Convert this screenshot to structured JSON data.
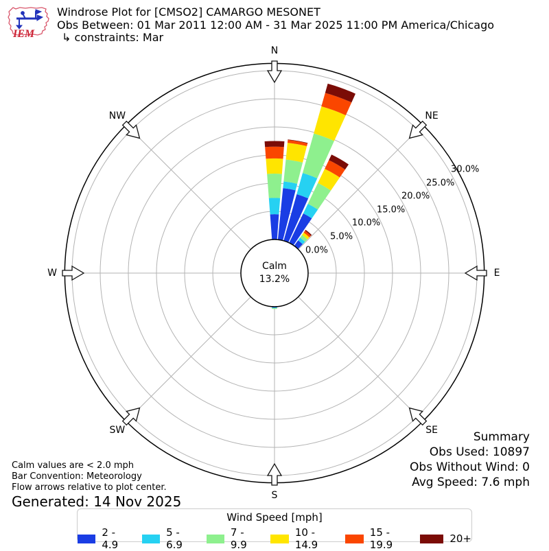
{
  "header": {
    "logo_text": "IEM",
    "title": "Windrose Plot for [CMSO2] CAMARGO MESONET",
    "subtitle": "Obs Between: 01 Mar 2011 12:00 AM - 31 Mar 2025 11:00 PM America/Chicago",
    "constraints": "↳ constraints: Mar"
  },
  "chart_data": {
    "type": "windrose-polar-stacked-bar",
    "units": "percent frequency of wind direction",
    "calm": {
      "label": "Calm",
      "value_label": "13.2%",
      "value_pct": 13.2
    },
    "radial_ticks": [
      0,
      5,
      10,
      15,
      20,
      25,
      30
    ],
    "radial_tick_labels": [
      "0.0%",
      "5.0%",
      "10.0%",
      "15.0%",
      "20.0%",
      "25.0%",
      "30.0%"
    ],
    "radial_max_pct": 31.3,
    "ring_label_azimuth_deg": 61.5,
    "bar_width_deg": 8.6,
    "grid_on": true,
    "compass_points": [
      {
        "label": "N",
        "az": 0
      },
      {
        "label": "NE",
        "az": 45
      },
      {
        "label": "E",
        "az": 90
      },
      {
        "label": "SE",
        "az": 135
      },
      {
        "label": "S",
        "az": 180
      },
      {
        "label": "SW",
        "az": 225
      },
      {
        "label": "W",
        "az": 270
      },
      {
        "label": "NW",
        "az": 315
      }
    ],
    "speed_bins": [
      {
        "label": "2 - 4.9",
        "color": "#1a3de4"
      },
      {
        "label": "5 - 6.9",
        "color": "#26d1f2"
      },
      {
        "label": "7 - 9.9",
        "color": "#8ef08e"
      },
      {
        "label": "10 - 14.9",
        "color": "#ffe500"
      },
      {
        "label": "15 - 19.9",
        "color": "#fa4600"
      },
      {
        "label": "20+",
        "color": "#7b0c06"
      }
    ],
    "bars": [
      {
        "az": 0,
        "values": [
          4.5,
          2.9,
          4.3,
          2.7,
          2.1,
          1.0
        ]
      },
      {
        "az": 10,
        "values": [
          9.2,
          1.2,
          3.9,
          3.0,
          0.5,
          0.1
        ]
      },
      {
        "az": 20,
        "values": [
          8.6,
          3.9,
          7.3,
          5.0,
          2.5,
          1.7
        ]
      },
      {
        "az": 30,
        "values": [
          5.8,
          1.9,
          4.1,
          2.8,
          1.7,
          1.1
        ]
      },
      {
        "az": 40,
        "values": [
          1.2,
          0.6,
          0.6,
          0.5,
          0.4,
          0.2
        ]
      },
      {
        "az": 180,
        "values": [
          0.15,
          0.1,
          0.15,
          0,
          0,
          0
        ]
      }
    ]
  },
  "summary": {
    "title": "Summary",
    "obs_used": "Obs Used: 10897",
    "obs_without_wind": "Obs Without Wind: 0",
    "avg_speed": "Avg Speed: 7.6 mph"
  },
  "footnotes": {
    "calm_threshold": "Calm values are < 2.0 mph",
    "bar_convention": "Bar Convention: Meteorology",
    "flow_arrows": "Flow arrows relative to plot center.",
    "generated": "Generated: 14 Nov 2025"
  },
  "legend": {
    "title": "Wind Speed [mph]"
  },
  "colors": {
    "grid": "#b3b3b3",
    "outline": "#000000",
    "logo_red": "#cc2233",
    "logo_outline": "#d9566b",
    "logo_blue": "#2233bb"
  }
}
